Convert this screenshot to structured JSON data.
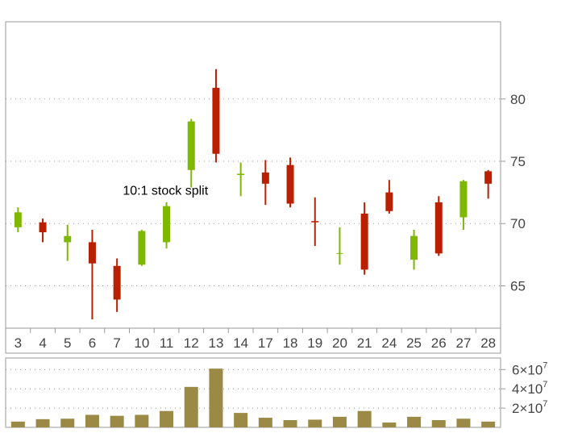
{
  "chart_data": [
    {
      "type": "candlestick",
      "x_labels": [
        "3",
        "4",
        "5",
        "6",
        "7",
        "10",
        "11",
        "12",
        "13",
        "14",
        "17",
        "18",
        "19",
        "20",
        "21",
        "24",
        "25",
        "26",
        "27",
        "28"
      ],
      "series": [
        {
          "open": 69.7,
          "high": 71.3,
          "low": 69.3,
          "close": 70.9
        },
        {
          "open": 70.1,
          "high": 70.4,
          "low": 68.5,
          "close": 69.3
        },
        {
          "open": 68.5,
          "high": 69.9,
          "low": 67.0,
          "close": 69.0
        },
        {
          "open": 68.5,
          "high": 69.5,
          "low": 62.3,
          "close": 66.8
        },
        {
          "open": 66.6,
          "high": 67.2,
          "low": 62.9,
          "close": 63.9
        },
        {
          "open": 66.7,
          "high": 69.5,
          "low": 66.6,
          "close": 69.4
        },
        {
          "open": 68.5,
          "high": 71.7,
          "low": 68.0,
          "close": 71.4
        },
        {
          "open": 74.3,
          "high": 78.4,
          "low": 72.9,
          "close": 78.2
        },
        {
          "open": 80.9,
          "high": 82.4,
          "low": 74.9,
          "close": 75.6
        },
        {
          "open": 73.9,
          "high": 74.9,
          "low": 72.2,
          "close": 74.0
        },
        {
          "open": 74.1,
          "high": 75.1,
          "low": 71.5,
          "close": 73.2
        },
        {
          "open": 74.7,
          "high": 75.3,
          "low": 71.3,
          "close": 71.6
        },
        {
          "open": 70.2,
          "high": 72.1,
          "low": 68.2,
          "close": 70.1
        },
        {
          "open": 67.6,
          "high": 69.7,
          "low": 66.7,
          "close": 67.6
        },
        {
          "open": 70.8,
          "high": 71.7,
          "low": 65.9,
          "close": 66.3
        },
        {
          "open": 72.5,
          "high": 73.5,
          "low": 70.8,
          "close": 71.0
        },
        {
          "open": 67.1,
          "high": 69.5,
          "low": 66.3,
          "close": 69.0
        },
        {
          "open": 71.7,
          "high": 72.2,
          "low": 67.4,
          "close": 67.6
        },
        {
          "open": 70.5,
          "high": 73.5,
          "low": 69.5,
          "close": 73.4
        },
        {
          "open": 74.2,
          "high": 74.3,
          "low": 72.0,
          "close": 73.2
        }
      ],
      "y_ticks": [
        65,
        70,
        75,
        80
      ],
      "ylim": [
        61.6,
        86.2
      ],
      "up_color": "#7fb800",
      "down_color": "#b82000",
      "annotation": {
        "text": "10:1 stock split",
        "x_index": 7
      },
      "grid": "horizontal dotted"
    },
    {
      "type": "bar",
      "x_labels": [
        "3",
        "4",
        "5",
        "6",
        "7",
        "10",
        "11",
        "12",
        "13",
        "14",
        "17",
        "18",
        "19",
        "20",
        "21",
        "24",
        "25",
        "26",
        "27",
        "28"
      ],
      "values": [
        6000000,
        8500000,
        9000000,
        13000000,
        12000000,
        13000000,
        17000000,
        42000000,
        61000000,
        15000000,
        10000000,
        7500000,
        8000000,
        11000000,
        17000000,
        5000000,
        11000000,
        7500000,
        9000000,
        6000000
      ],
      "y_ticks": [
        {
          "value": 20000000,
          "mantissa": "2",
          "base": "10",
          "exponent": "7"
        },
        {
          "value": 40000000,
          "mantissa": "4",
          "base": "10",
          "exponent": "7"
        },
        {
          "value": 60000000,
          "mantissa": "6",
          "base": "10",
          "exponent": "7"
        }
      ],
      "ylim": [
        0,
        72000000
      ],
      "bar_color": "#9a8a45",
      "grid": "horizontal dotted"
    }
  ]
}
